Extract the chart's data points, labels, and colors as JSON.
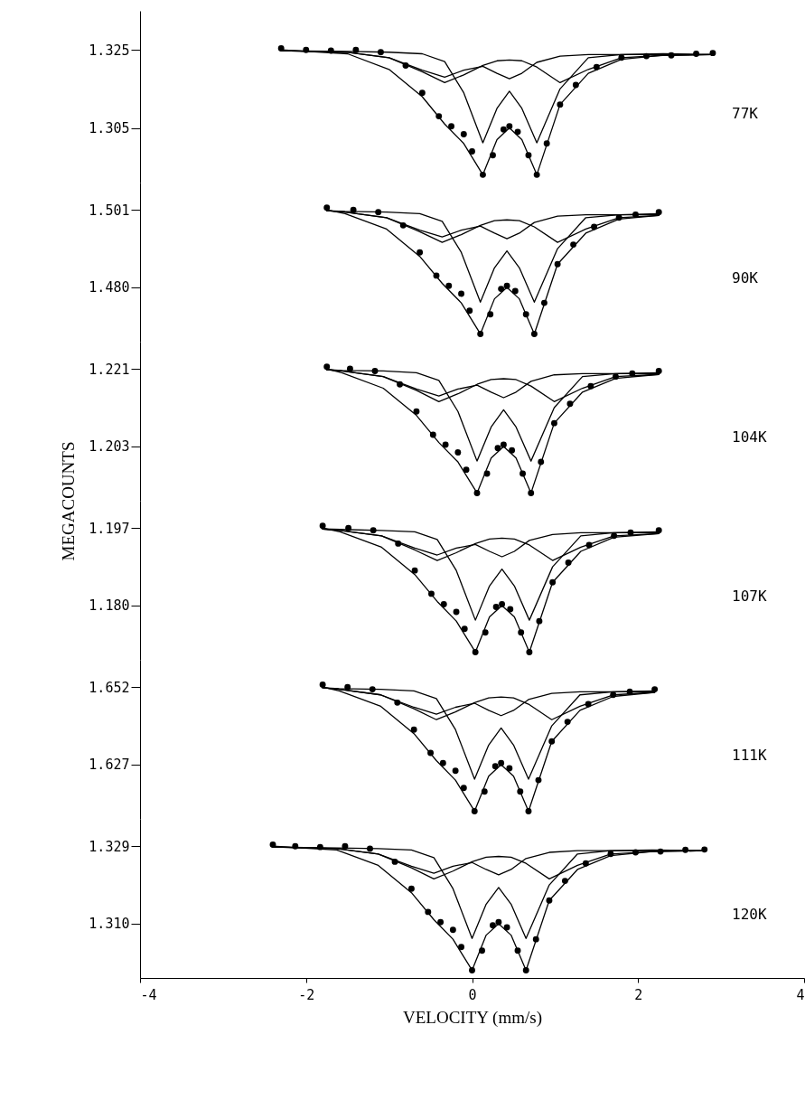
{
  "chart_data": [
    {
      "type": "line",
      "annotations": [
        "77K"
      ],
      "xlim": [
        -4,
        4
      ],
      "ylim": [
        1.291,
        1.335
      ],
      "yticks": [
        1.325,
        1.305
      ],
      "tick_labels": "y",
      "x": [
        -2.3,
        -1.5,
        -1.0,
        -0.6,
        -0.33,
        -0.1,
        0.13,
        0.3,
        0.45,
        0.6,
        0.78,
        1.06,
        1.4,
        1.8,
        2.3,
        2.9
      ],
      "series": [
        {
          "type": "scatter",
          "marker": "circle",
          "color": "#000000",
          "x": [
            -2.3,
            -2.0,
            -1.7,
            -1.4,
            -1.1,
            -0.8,
            -0.6,
            -0.4,
            -0.25,
            -0.1,
            0.0,
            0.13,
            0.25,
            0.38,
            0.45,
            0.55,
            0.68,
            0.78,
            0.9,
            1.06,
            1.25,
            1.5,
            1.8,
            2.1,
            2.4,
            2.7,
            2.9
          ],
          "values": [
            1.3254,
            1.325,
            1.3248,
            1.325,
            1.3244,
            1.321,
            1.314,
            1.308,
            1.3054,
            1.3034,
            1.299,
            1.293,
            1.298,
            1.3046,
            1.3054,
            1.304,
            1.298,
            1.293,
            1.301,
            1.311,
            1.316,
            1.3206,
            1.323,
            1.3234,
            1.3236,
            1.324,
            1.3242
          ]
        },
        {
          "color": "#000000",
          "values": [
            1.3248,
            1.3246,
            1.3244,
            1.324,
            1.322,
            1.314,
            1.3012,
            1.31,
            1.3144,
            1.31,
            1.3012,
            1.315,
            1.323,
            1.3238,
            1.324,
            1.3238
          ]
        },
        {
          "color": "#000000",
          "values": [
            1.3248,
            1.3244,
            1.323,
            1.3194,
            1.3166,
            1.3186,
            1.321,
            1.3222,
            1.3224,
            1.3222,
            1.3206,
            1.3166,
            1.32,
            1.323,
            1.3236,
            1.3238
          ]
        },
        {
          "color": "#000000",
          "values": [
            1.3248,
            1.3244,
            1.323,
            1.3198,
            1.318,
            1.3198,
            1.3208,
            1.319,
            1.3176,
            1.319,
            1.3218,
            1.3234,
            1.3238,
            1.3238,
            1.3238,
            1.3238
          ]
        },
        {
          "color": "#000000",
          "values": [
            1.325,
            1.324,
            1.32,
            1.313,
            1.306,
            1.301,
            1.293,
            1.302,
            1.305,
            1.302,
            1.293,
            1.311,
            1.319,
            1.3226,
            1.3236,
            1.3238
          ]
        }
      ]
    },
    {
      "type": "line",
      "annotations": [
        "90K"
      ],
      "xlim": [
        -4,
        4
      ],
      "ylim": [
        1.4653,
        1.5084
      ],
      "yticks": [
        1.501,
        {
          "value": 1.48,
          "label": "1.480"
        }
      ],
      "tick_labels": "y",
      "x": [
        -1.75,
        -1.53,
        -1.03,
        -0.63,
        -0.36,
        -0.13,
        0.1,
        0.27,
        0.42,
        0.57,
        0.75,
        1.03,
        1.37,
        1.77,
        2.25
      ],
      "series": [
        {
          "type": "scatter",
          "marker": "circle",
          "color": "#000000",
          "x": [
            -1.75,
            -1.43,
            -1.13,
            -0.83,
            -0.63,
            -0.43,
            -0.28,
            -0.13,
            -0.03,
            0.1,
            0.22,
            0.35,
            0.42,
            0.52,
            0.65,
            0.75,
            0.87,
            1.03,
            1.22,
            1.47,
            1.77,
            1.97,
            2.25
          ],
          "values": [
            1.5016,
            1.501,
            1.5004,
            1.4968,
            1.4895,
            1.4832,
            1.4804,
            1.4783,
            1.4737,
            1.4674,
            1.4727,
            1.4796,
            1.4804,
            1.479,
            1.4727,
            1.4674,
            1.4758,
            1.4863,
            1.4916,
            1.4964,
            1.4989,
            1.4997,
            1.5004
          ]
        },
        {
          "color": "#000000",
          "values": [
            1.5008,
            1.5006,
            1.5004,
            1.5,
            1.4979,
            1.4895,
            1.476,
            1.4853,
            1.4899,
            1.4853,
            1.476,
            1.4905,
            1.4989,
            1.4997,
            1.5
          ]
        },
        {
          "color": "#000000",
          "values": [
            1.5008,
            1.5004,
            1.4989,
            1.4951,
            1.4922,
            1.4943,
            1.4968,
            1.4981,
            1.4983,
            1.4981,
            1.4964,
            1.4922,
            1.4958,
            1.4989,
            1.4995
          ]
        },
        {
          "color": "#000000",
          "values": [
            1.5008,
            1.5004,
            1.4989,
            1.4955,
            1.4937,
            1.4955,
            1.4966,
            1.4947,
            1.4932,
            1.4947,
            1.4976,
            1.4993,
            1.4997,
            1.4997,
            1.4997
          ]
        },
        {
          "color": "#000000",
          "values": [
            1.501,
            1.5,
            1.4958,
            1.4884,
            1.4811,
            1.4758,
            1.4674,
            1.4769,
            1.48,
            1.4769,
            1.4674,
            1.4863,
            1.4947,
            1.4985,
            1.4995
          ]
        }
      ]
    },
    {
      "type": "line",
      "annotations": [
        "104K"
      ],
      "ylabel": "MEGACOUNTS",
      "xlim": [
        -4,
        4
      ],
      "ylim": [
        1.1904,
        1.2273
      ],
      "yticks": [
        1.221,
        1.203
      ],
      "tick_labels": "y",
      "x": [
        -1.75,
        -1.57,
        -1.07,
        -0.67,
        -0.4,
        -0.17,
        0.06,
        0.23,
        0.38,
        0.53,
        0.71,
        0.99,
        1.33,
        1.73,
        2.25
      ],
      "series": [
        {
          "type": "scatter",
          "marker": "circle",
          "color": "#000000",
          "x": [
            -1.75,
            -1.47,
            -1.17,
            -0.87,
            -0.67,
            -0.47,
            -0.32,
            -0.17,
            -0.07,
            0.06,
            0.18,
            0.31,
            0.38,
            0.48,
            0.61,
            0.71,
            0.83,
            0.99,
            1.18,
            1.43,
            1.73,
            1.93,
            2.25
          ],
          "values": [
            1.2215,
            1.221,
            1.2205,
            1.2174,
            1.2111,
            1.2057,
            1.2034,
            1.2016,
            1.1976,
            1.1922,
            1.1967,
            1.2026,
            1.2034,
            1.2021,
            1.1967,
            1.1922,
            1.1994,
            1.2084,
            1.2129,
            1.217,
            1.2192,
            1.2199,
            1.2205
          ]
        },
        {
          "color": "#000000",
          "values": [
            1.2208,
            1.2206,
            1.2205,
            1.2201,
            1.2183,
            1.2111,
            1.1996,
            1.2075,
            1.2115,
            1.2075,
            1.1996,
            1.212,
            1.2192,
            1.2199,
            1.2201
          ]
        },
        {
          "color": "#000000",
          "values": [
            1.2208,
            1.2205,
            1.2192,
            1.216,
            1.2134,
            1.2152,
            1.2174,
            1.2185,
            1.2187,
            1.2185,
            1.217,
            1.2134,
            1.2165,
            1.2192,
            1.2197
          ]
        },
        {
          "color": "#000000",
          "values": [
            1.2208,
            1.2205,
            1.2192,
            1.2163,
            1.2147,
            1.2163,
            1.2172,
            1.2156,
            1.2143,
            1.2156,
            1.2181,
            1.2196,
            1.2199,
            1.2199,
            1.2199
          ]
        },
        {
          "color": "#000000",
          "values": [
            1.221,
            1.2201,
            1.2165,
            1.2102,
            1.2039,
            1.1994,
            1.1922,
            1.2003,
            1.203,
            1.2003,
            1.1922,
            1.2084,
            1.2156,
            1.2188,
            1.2197
          ]
        }
      ]
    },
    {
      "type": "line",
      "annotations": [
        "107K"
      ],
      "xlim": [
        -4,
        4
      ],
      "ylim": [
        1.1681,
        1.203
      ],
      "yticks": [
        1.197,
        {
          "value": 1.18,
          "label": "1.180"
        }
      ],
      "tick_labels": "y",
      "x": [
        -1.8,
        -1.59,
        -1.09,
        -0.69,
        -0.42,
        -0.19,
        0.04,
        0.21,
        0.36,
        0.51,
        0.69,
        0.97,
        1.31,
        1.71,
        2.25
      ],
      "series": [
        {
          "type": "scatter",
          "marker": "circle",
          "color": "#000000",
          "x": [
            -1.8,
            -1.49,
            -1.19,
            -0.89,
            -0.69,
            -0.49,
            -0.34,
            -0.19,
            -0.09,
            0.04,
            0.16,
            0.29,
            0.36,
            0.46,
            0.59,
            0.69,
            0.81,
            0.97,
            1.16,
            1.41,
            1.71,
            1.91,
            2.25
          ],
          "values": [
            1.1975,
            1.197,
            1.1965,
            1.1936,
            1.1877,
            1.1826,
            1.1803,
            1.1786,
            1.1749,
            1.1698,
            1.1741,
            1.1797,
            1.1803,
            1.1792,
            1.1741,
            1.1698,
            1.1766,
            1.1851,
            1.1894,
            1.1933,
            1.1953,
            1.196,
            1.1965
          ]
        },
        {
          "color": "#000000",
          "values": [
            1.1968,
            1.1967,
            1.1965,
            1.1962,
            1.1945,
            1.1877,
            1.1768,
            1.1843,
            1.188,
            1.1843,
            1.1768,
            1.1885,
            1.1953,
            1.196,
            1.1962
          ]
        },
        {
          "color": "#000000",
          "values": [
            1.1968,
            1.1965,
            1.1953,
            1.1922,
            1.1899,
            1.1916,
            1.1936,
            1.1946,
            1.1948,
            1.1946,
            1.1933,
            1.1899,
            1.1928,
            1.1953,
            1.1958
          ]
        },
        {
          "color": "#000000",
          "values": [
            1.1968,
            1.1965,
            1.1953,
            1.1926,
            1.1911,
            1.1926,
            1.1934,
            1.1919,
            1.1907,
            1.1919,
            1.1943,
            1.1956,
            1.196,
            1.196,
            1.196
          ]
        },
        {
          "color": "#000000",
          "values": [
            1.197,
            1.1962,
            1.1928,
            1.1868,
            1.1809,
            1.1766,
            1.1698,
            1.1775,
            1.18,
            1.1775,
            1.1698,
            1.1851,
            1.1919,
            1.195,
            1.1958
          ]
        }
      ]
    },
    {
      "type": "line",
      "annotations": [
        "111K"
      ],
      "xlim": [
        -4,
        4
      ],
      "ylim": [
        1.6095,
        1.6608
      ],
      "yticks": [
        1.652,
        1.627
      ],
      "tick_labels": "y",
      "x": [
        -1.8,
        -1.6,
        -1.1,
        -0.7,
        -0.43,
        -0.2,
        0.03,
        0.2,
        0.35,
        0.5,
        0.68,
        0.96,
        1.3,
        1.7,
        2.2
      ],
      "series": [
        {
          "type": "scatter",
          "marker": "circle",
          "color": "#000000",
          "x": [
            -1.8,
            -1.5,
            -1.2,
            -0.9,
            -0.7,
            -0.5,
            -0.35,
            -0.2,
            -0.1,
            0.03,
            0.15,
            0.28,
            0.35,
            0.45,
            0.58,
            0.68,
            0.8,
            0.96,
            1.15,
            1.4,
            1.7,
            1.9,
            2.2
          ],
          "values": [
            1.6528,
            1.652,
            1.6513,
            1.647,
            1.6383,
            1.6308,
            1.6275,
            1.625,
            1.6195,
            1.612,
            1.6183,
            1.6265,
            1.6275,
            1.6258,
            1.6183,
            1.612,
            1.622,
            1.6345,
            1.6408,
            1.6465,
            1.6495,
            1.6505,
            1.6513
          ]
        },
        {
          "color": "#000000",
          "values": [
            1.6518,
            1.6515,
            1.6513,
            1.6508,
            1.6483,
            1.6383,
            1.6223,
            1.6333,
            1.6388,
            1.6333,
            1.6223,
            1.6395,
            1.6495,
            1.6505,
            1.6508
          ]
        },
        {
          "color": "#000000",
          "values": [
            1.6518,
            1.6513,
            1.6495,
            1.645,
            1.6415,
            1.644,
            1.647,
            1.6485,
            1.6488,
            1.6485,
            1.6465,
            1.6415,
            1.6458,
            1.6495,
            1.6503
          ]
        },
        {
          "color": "#000000",
          "values": [
            1.6518,
            1.6513,
            1.6495,
            1.6455,
            1.6433,
            1.6455,
            1.6468,
            1.6445,
            1.6428,
            1.6445,
            1.648,
            1.65,
            1.6505,
            1.6505,
            1.6505
          ]
        },
        {
          "color": "#000000",
          "values": [
            1.652,
            1.6508,
            1.6458,
            1.637,
            1.6283,
            1.622,
            1.612,
            1.6233,
            1.627,
            1.6233,
            1.612,
            1.6345,
            1.6445,
            1.649,
            1.6503
          ]
        }
      ]
    },
    {
      "type": "line",
      "annotations": [
        "120K"
      ],
      "xlabel": "VELOCITY (mm/s)",
      "xlim": [
        -4,
        4
      ],
      "xticks": [
        -4,
        -2,
        0,
        2,
        4
      ],
      "ylim": [
        1.2967,
        1.3357
      ],
      "yticks": [
        1.329,
        {
          "value": 1.31,
          "label": "1.310"
        }
      ],
      "x": [
        -2.4,
        -1.63,
        -1.13,
        -0.73,
        -0.46,
        -0.23,
        0.0,
        0.17,
        0.32,
        0.47,
        0.65,
        0.93,
        1.27,
        1.67,
        2.17,
        2.8
      ],
      "series": [
        {
          "type": "scatter",
          "marker": "circle",
          "color": "#000000",
          "x": [
            -2.4,
            -2.13,
            -1.83,
            -1.53,
            -1.23,
            -0.93,
            -0.73,
            -0.53,
            -0.38,
            -0.23,
            -0.13,
            0.0,
            0.12,
            0.25,
            0.32,
            0.42,
            0.55,
            0.65,
            0.77,
            0.93,
            1.12,
            1.37,
            1.67,
            1.97,
            2.27,
            2.57,
            2.8
          ],
          "values": [
            1.3294,
            1.329,
            1.3288,
            1.329,
            1.3284,
            1.3252,
            1.3186,
            1.3129,
            1.3104,
            1.3085,
            1.3043,
            1.2986,
            1.3034,
            1.3096,
            1.3104,
            1.3091,
            1.3034,
            1.2986,
            1.3062,
            1.3157,
            1.3205,
            1.3248,
            1.3271,
            1.3275,
            1.3277,
            1.3281,
            1.3282
          ]
        },
        {
          "color": "#000000",
          "values": [
            1.3288,
            1.3286,
            1.3284,
            1.3281,
            1.3262,
            1.3186,
            1.3064,
            1.3148,
            1.3189,
            1.3148,
            1.3064,
            1.3195,
            1.3271,
            1.3279,
            1.3281,
            1.3279
          ]
        },
        {
          "color": "#000000",
          "values": [
            1.3288,
            1.3284,
            1.3271,
            1.3237,
            1.321,
            1.3229,
            1.3252,
            1.3263,
            1.3265,
            1.3263,
            1.3248,
            1.321,
            1.3243,
            1.3271,
            1.3277,
            1.3279
          ]
        },
        {
          "color": "#000000",
          "values": [
            1.3288,
            1.3284,
            1.3271,
            1.3241,
            1.3224,
            1.3241,
            1.325,
            1.3233,
            1.322,
            1.3233,
            1.326,
            1.3275,
            1.3279,
            1.3279,
            1.3279,
            1.3279
          ]
        },
        {
          "color": "#000000",
          "values": [
            1.329,
            1.3281,
            1.3243,
            1.3176,
            1.311,
            1.3062,
            1.2986,
            1.3072,
            1.31,
            1.3072,
            1.2986,
            1.3157,
            1.3233,
            1.3267,
            1.3277,
            1.3279
          ]
        }
      ]
    }
  ]
}
